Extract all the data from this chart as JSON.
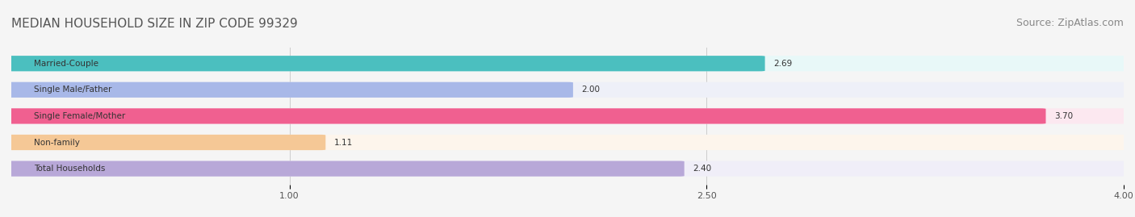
{
  "title": "MEDIAN HOUSEHOLD SIZE IN ZIP CODE 99329",
  "source": "Source: ZipAtlas.com",
  "categories": [
    "Married-Couple",
    "Single Male/Father",
    "Single Female/Mother",
    "Non-family",
    "Total Households"
  ],
  "values": [
    2.69,
    2.0,
    3.7,
    1.11,
    2.4
  ],
  "bar_colors": [
    "#4bbfbf",
    "#a8b8e8",
    "#f06090",
    "#f5c896",
    "#b8a8d8"
  ],
  "bar_bg_colors": [
    "#e8f8f8",
    "#eef0f8",
    "#fce8f0",
    "#fdf5ec",
    "#f0eef8"
  ],
  "xlim": [
    0,
    4.0
  ],
  "xticks": [
    1.0,
    2.5,
    4.0
  ],
  "value_labels": [
    "2.69",
    "2.00",
    "3.70",
    "1.11",
    "2.40"
  ],
  "background_color": "#f5f5f5",
  "title_fontsize": 11,
  "source_fontsize": 9
}
